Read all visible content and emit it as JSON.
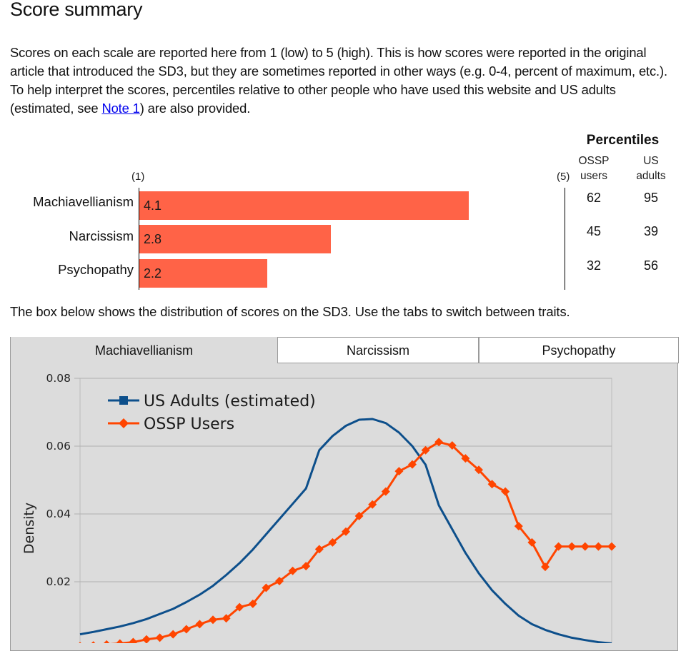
{
  "header": {
    "title": "Score summary"
  },
  "intro": {
    "before_link": "Scores on each scale are reported here from 1 (low) to 5 (high). This is how scores were reported in the original article that introduced the SD3, but they are sometimes reported in other ways (e.g. 0-4, percent of maximum, etc.). To help interpret the scores, percentiles relative to other people who have used this website and US adults (estimated, see ",
    "link_text": "Note 1",
    "after_link": ") are also provided."
  },
  "summary": {
    "percentiles_title": "Percentiles",
    "col_ossp": "OSSP\nusers",
    "col_us": "US\nadults",
    "scale_min_label": "(1)",
    "scale_max_label": "(5)",
    "scale_min": 1,
    "scale_max": 5,
    "bar_color": "#ff6347",
    "rows": [
      {
        "trait": "Machiavellianism",
        "score": 4.1,
        "score_label": "4.1",
        "ossp": "62",
        "us": "95"
      },
      {
        "trait": "Narcissism",
        "score": 2.8,
        "score_label": "2.8",
        "ossp": "45",
        "us": "39"
      },
      {
        "trait": "Psychopathy",
        "score": 2.2,
        "score_label": "2.2",
        "ossp": "32",
        "us": "56"
      }
    ]
  },
  "distribution": {
    "intro": "The box below shows the distribution of scores on the SD3. Use the tabs to switch between traits.",
    "tabs": [
      {
        "label": "Machiavellianism",
        "active": true
      },
      {
        "label": "Narcissism",
        "active": false
      },
      {
        "label": "Psychopathy",
        "active": false
      }
    ]
  },
  "chart_data": {
    "type": "line",
    "ylabel": "Density",
    "xlabel": "",
    "ylim": [
      0.0,
      0.08
    ],
    "xlim": [
      1,
      5
    ],
    "yticks": [
      "0.02",
      "0.04",
      "0.06",
      "0.08"
    ],
    "grid": true,
    "legend_position": "top-left",
    "series": [
      {
        "name": "US Adults (estimated)",
        "color": "#0d4f8b",
        "marker": "square",
        "x": [
          1.0,
          1.1,
          1.2,
          1.3,
          1.4,
          1.5,
          1.6,
          1.7,
          1.8,
          1.9,
          2.0,
          2.1,
          2.2,
          2.3,
          2.4,
          2.5,
          2.6,
          2.7,
          2.8,
          2.9,
          3.0,
          3.1,
          3.2,
          3.3,
          3.4,
          3.5,
          3.6,
          3.7,
          3.8,
          3.9,
          4.0,
          4.1,
          4.2,
          4.3,
          4.4,
          4.5,
          4.6,
          4.7,
          4.8,
          4.9,
          5.0
        ],
        "y": [
          0.0045,
          0.0052,
          0.006,
          0.0068,
          0.0078,
          0.009,
          0.0105,
          0.012,
          0.014,
          0.0162,
          0.0188,
          0.022,
          0.0255,
          0.0295,
          0.034,
          0.0385,
          0.043,
          0.0475,
          0.0588,
          0.063,
          0.066,
          0.0678,
          0.068,
          0.0668,
          0.064,
          0.06,
          0.0545,
          0.0425,
          0.0355,
          0.0285,
          0.0225,
          0.0175,
          0.0135,
          0.01,
          0.0075,
          0.0058,
          0.0045,
          0.0035,
          0.0028,
          0.0022,
          0.0018
        ]
      },
      {
        "name": "OSSP Users",
        "color": "#ff4500",
        "marker": "diamond",
        "x": [
          1.0,
          1.1,
          1.2,
          1.3,
          1.4,
          1.5,
          1.6,
          1.7,
          1.8,
          1.9,
          2.0,
          2.1,
          2.2,
          2.3,
          2.4,
          2.5,
          2.6,
          2.7,
          2.8,
          2.9,
          3.0,
          3.1,
          3.2,
          3.3,
          3.4,
          3.5,
          3.6,
          3.7,
          3.8,
          3.9,
          4.0,
          4.1,
          4.2,
          4.3,
          4.4,
          4.5,
          4.6,
          4.7,
          4.8,
          4.9,
          5.0
        ],
        "y": [
          0.001,
          0.0012,
          0.0015,
          0.0018,
          0.0022,
          0.003,
          0.0035,
          0.0045,
          0.006,
          0.0075,
          0.0088,
          0.0092,
          0.0125,
          0.0135,
          0.0182,
          0.0202,
          0.0232,
          0.0246,
          0.0296,
          0.0316,
          0.0348,
          0.0394,
          0.0428,
          0.0466,
          0.0526,
          0.0546,
          0.0588,
          0.0612,
          0.0602,
          0.0564,
          0.053,
          0.0488,
          0.0466,
          0.0364,
          0.0316,
          0.0244,
          0.0304,
          0.0304,
          0.0304,
          0.0304,
          0.0304
        ]
      }
    ]
  }
}
